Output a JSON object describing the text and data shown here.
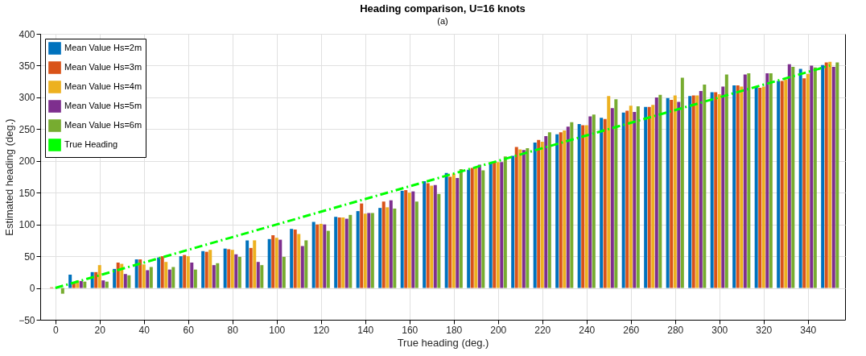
{
  "chart_data": {
    "type": "bar",
    "title": "Heading comparison, U=16 knots",
    "xlabel": "True heading (deg.)",
    "ylabel": "Estimated heading (deg.)",
    "annotations": [
      "(a)"
    ],
    "x": [
      0,
      10,
      20,
      30,
      40,
      50,
      60,
      70,
      80,
      90,
      100,
      110,
      120,
      130,
      140,
      150,
      160,
      170,
      180,
      190,
      200,
      210,
      220,
      230,
      240,
      250,
      260,
      270,
      280,
      290,
      300,
      310,
      320,
      330,
      340,
      350
    ],
    "series": [
      {
        "name": "Mean Value Hs=2m",
        "color": "#0072bd",
        "values": [
          null,
          21,
          25,
          30,
          45,
          48,
          50,
          58,
          62,
          75,
          77,
          93,
          104,
          112,
          121,
          126,
          153,
          168,
          181,
          186,
          196,
          208,
          229,
          242,
          258,
          268,
          276,
          285,
          299,
          302,
          308,
          319,
          317,
          326,
          345,
          351
        ]
      },
      {
        "name": "Mean Value Hs=3m",
        "color": "#d95319",
        "values": [
          1,
          7,
          25,
          40,
          45,
          50,
          52,
          57,
          61,
          63,
          83,
          92,
          100,
          111,
          133,
          136,
          154,
          165,
          175,
          189,
          198,
          222,
          233,
          245,
          256,
          266,
          279,
          285,
          296,
          303,
          308,
          319,
          315,
          326,
          330,
          355
        ]
      },
      {
        "name": "Mean Value Hs=4m",
        "color": "#edb120",
        "values": [
          null,
          12,
          36,
          38,
          37,
          41,
          50,
          60,
          60,
          75,
          79,
          85,
          101,
          111,
          117,
          127,
          150,
          161,
          180,
          189,
          198,
          218,
          230,
          248,
          256,
          302,
          287,
          288,
          303,
          303,
          305,
          317,
          317,
          328,
          337,
          356
        ]
      },
      {
        "name": "Mean Value Hs=5m",
        "color": "#7e2f8e",
        "values": [
          0,
          11,
          12,
          22,
          28,
          29,
          40,
          36,
          53,
          41,
          76,
          66,
          100,
          109,
          118,
          138,
          152,
          162,
          173,
          194,
          198,
          217,
          239,
          254,
          270,
          283,
          277,
          300,
          293,
          310,
          317,
          336,
          338,
          352,
          350,
          348
        ]
      },
      {
        "name": "Mean Value Hs=6m",
        "color": "#77ac30",
        "values": [
          -9,
          10,
          10,
          20,
          33,
          33,
          29,
          39,
          49,
          36,
          49,
          75,
          90,
          115,
          118,
          125,
          136,
          148,
          187,
          185,
          207,
          220,
          245,
          261,
          273,
          297,
          286,
          304,
          331,
          320,
          336,
          338,
          338,
          348,
          347,
          355
        ]
      },
      {
        "name": "True Heading",
        "type": "line",
        "color": "#00ff00",
        "line_style": "dashed",
        "x": [
          0,
          350
        ],
        "values": [
          0,
          350
        ]
      }
    ],
    "xlim": [
      -5,
      355
    ],
    "xticks": [
      0,
      20,
      40,
      60,
      80,
      100,
      120,
      140,
      160,
      180,
      200,
      220,
      240,
      260,
      280,
      300,
      320,
      340
    ],
    "ylim": [
      -50,
      400
    ],
    "yticks": [
      -50,
      0,
      50,
      100,
      150,
      200,
      250,
      300,
      350,
      400
    ],
    "grid": true,
    "legend": "top left"
  }
}
